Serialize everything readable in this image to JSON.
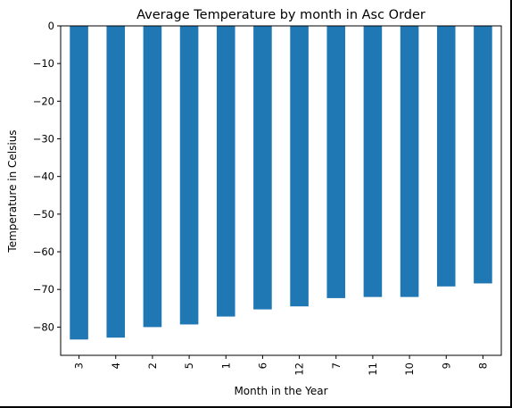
{
  "chart_data": {
    "type": "bar",
    "title": "Average Temperature by month in Asc Order",
    "xlabel": "Month in the Year",
    "ylabel": "Temperature in Celsius",
    "categories": [
      "3",
      "4",
      "2",
      "5",
      "1",
      "6",
      "12",
      "7",
      "11",
      "10",
      "9",
      "8"
    ],
    "values": [
      -83.3,
      -82.8,
      -80.0,
      -79.3,
      -77.2,
      -75.3,
      -74.5,
      -72.3,
      -72.0,
      -72.0,
      -69.2,
      -68.4
    ],
    "ylim": [
      -87.5,
      0
    ],
    "yticks": [
      0,
      -10,
      -20,
      -30,
      -40,
      -50,
      -60,
      -70,
      -80
    ],
    "ytick_labels": [
      "0",
      "−10",
      "−20",
      "−30",
      "−40",
      "−50",
      "−60",
      "−70",
      "−80"
    ],
    "grid": false,
    "bar_color": "#1f77b4"
  }
}
